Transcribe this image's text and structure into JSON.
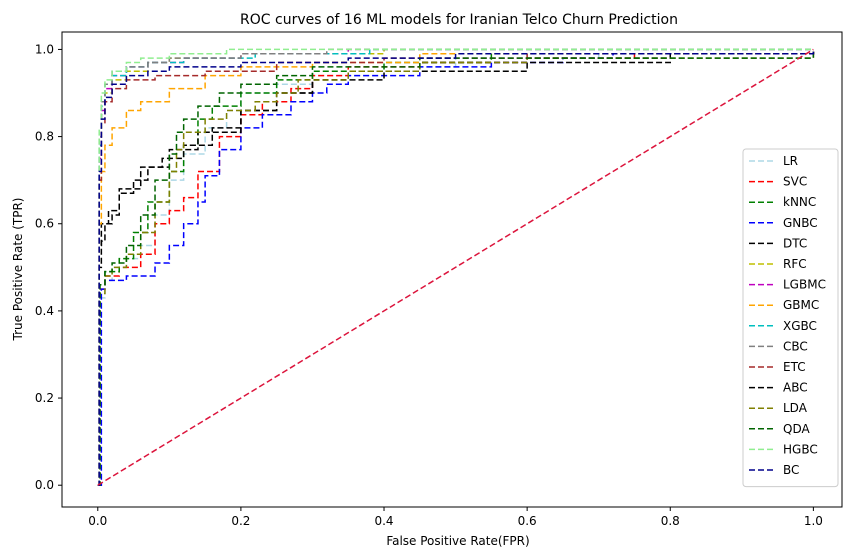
{
  "chart_data": {
    "type": "line",
    "title": "ROC curves of 16 ML models for Iranian Telco Churn Prediction",
    "xlabel": "False Positive Rate(FPR)",
    "ylabel": "True Positive Rate (TPR)",
    "xlim": [
      -0.05,
      1.04
    ],
    "ylim": [
      -0.05,
      1.04
    ],
    "xticks": [
      0.0,
      0.2,
      0.4,
      0.6,
      0.8,
      1.0
    ],
    "yticks": [
      0.0,
      0.2,
      0.4,
      0.6,
      0.8,
      1.0
    ],
    "xtick_labels": [
      "0.0",
      "0.2",
      "0.4",
      "0.6",
      "0.8",
      "1.0"
    ],
    "ytick_labels": [
      "0.0",
      "0.2",
      "0.4",
      "0.6",
      "0.8",
      "1.0"
    ],
    "grid": false,
    "legend_position": "right",
    "series": [
      {
        "name": "LR",
        "color": "#add8e6",
        "points": [
          [
            0,
            0
          ],
          [
            0.003,
            0.43
          ],
          [
            0.01,
            0.47
          ],
          [
            0.02,
            0.5
          ],
          [
            0.04,
            0.52
          ],
          [
            0.06,
            0.55
          ],
          [
            0.08,
            0.62
          ],
          [
            0.1,
            0.7
          ],
          [
            0.12,
            0.76
          ],
          [
            0.15,
            0.82
          ],
          [
            0.18,
            0.86
          ],
          [
            0.2,
            0.9
          ],
          [
            0.25,
            0.92
          ],
          [
            0.3,
            0.94
          ],
          [
            0.4,
            0.96
          ],
          [
            0.5,
            0.98
          ],
          [
            0.7,
            0.99
          ],
          [
            1.0,
            1.0
          ]
        ]
      },
      {
        "name": "SVC",
        "color": "#ff0000",
        "points": [
          [
            0,
            0
          ],
          [
            0.003,
            0.45
          ],
          [
            0.01,
            0.48
          ],
          [
            0.03,
            0.5
          ],
          [
            0.06,
            0.53
          ],
          [
            0.08,
            0.6
          ],
          [
            0.1,
            0.63
          ],
          [
            0.12,
            0.66
          ],
          [
            0.14,
            0.72
          ],
          [
            0.17,
            0.8
          ],
          [
            0.2,
            0.85
          ],
          [
            0.23,
            0.88
          ],
          [
            0.27,
            0.91
          ],
          [
            0.3,
            0.94
          ],
          [
            0.35,
            0.96
          ],
          [
            0.45,
            0.97
          ],
          [
            0.6,
            0.98
          ],
          [
            0.75,
            0.99
          ],
          [
            1.0,
            1.0
          ]
        ]
      },
      {
        "name": "kNNC",
        "color": "#008000",
        "points": [
          [
            0,
            0
          ],
          [
            0.003,
            0.46
          ],
          [
            0.01,
            0.49
          ],
          [
            0.03,
            0.52
          ],
          [
            0.05,
            0.58
          ],
          [
            0.07,
            0.65
          ],
          [
            0.1,
            0.72
          ],
          [
            0.12,
            0.78
          ],
          [
            0.14,
            0.84
          ],
          [
            0.16,
            0.87
          ],
          [
            0.2,
            0.9
          ],
          [
            0.25,
            0.93
          ],
          [
            0.3,
            0.95
          ],
          [
            0.4,
            0.97
          ],
          [
            0.55,
            0.99
          ],
          [
            1.0,
            1.0
          ]
        ]
      },
      {
        "name": "GNBC",
        "color": "#0000ff",
        "points": [
          [
            0,
            0
          ],
          [
            0.005,
            0.45
          ],
          [
            0.01,
            0.47
          ],
          [
            0.04,
            0.48
          ],
          [
            0.08,
            0.51
          ],
          [
            0.1,
            0.55
          ],
          [
            0.12,
            0.6
          ],
          [
            0.14,
            0.65
          ],
          [
            0.15,
            0.71
          ],
          [
            0.17,
            0.77
          ],
          [
            0.2,
            0.82
          ],
          [
            0.23,
            0.85
          ],
          [
            0.27,
            0.88
          ],
          [
            0.3,
            0.9
          ],
          [
            0.32,
            0.92
          ],
          [
            0.35,
            0.94
          ],
          [
            0.45,
            0.96
          ],
          [
            0.55,
            0.97
          ],
          [
            0.65,
            0.98
          ],
          [
            0.69,
            0.98
          ],
          [
            0.72,
            0.99
          ],
          [
            1.0,
            1.0
          ]
        ]
      },
      {
        "name": "DTC",
        "color": "#000000",
        "points": [
          [
            0,
            0
          ],
          [
            0.002,
            0.55
          ],
          [
            0.005,
            0.6
          ],
          [
            0.015,
            0.63
          ],
          [
            0.03,
            0.68
          ],
          [
            0.06,
            0.73
          ],
          [
            0.1,
            0.77
          ],
          [
            0.14,
            0.81
          ],
          [
            0.2,
            0.86
          ],
          [
            0.25,
            0.9
          ],
          [
            0.3,
            0.93
          ],
          [
            0.4,
            0.95
          ],
          [
            0.6,
            0.97
          ],
          [
            0.8,
            0.99
          ],
          [
            1.0,
            1.0
          ]
        ]
      },
      {
        "name": "RFC",
        "color": "#bfbf00",
        "points": [
          [
            0,
            0
          ],
          [
            0.002,
            0.7
          ],
          [
            0.005,
            0.85
          ],
          [
            0.01,
            0.9
          ],
          [
            0.02,
            0.93
          ],
          [
            0.04,
            0.95
          ],
          [
            0.07,
            0.97
          ],
          [
            0.1,
            0.98
          ],
          [
            0.2,
            0.99
          ],
          [
            0.4,
            1.0
          ],
          [
            1.0,
            1.0
          ]
        ]
      },
      {
        "name": "LGBMC",
        "color": "#bf00bf",
        "points": [
          [
            0,
            0
          ],
          [
            0.002,
            0.75
          ],
          [
            0.005,
            0.86
          ],
          [
            0.01,
            0.91
          ],
          [
            0.02,
            0.94
          ],
          [
            0.04,
            0.96
          ],
          [
            0.07,
            0.97
          ],
          [
            0.12,
            0.98
          ],
          [
            0.2,
            0.99
          ],
          [
            0.35,
            1.0
          ],
          [
            1.0,
            1.0
          ]
        ]
      },
      {
        "name": "GBMC",
        "color": "#ffa500",
        "points": [
          [
            0,
            0
          ],
          [
            0.002,
            0.6
          ],
          [
            0.005,
            0.72
          ],
          [
            0.01,
            0.78
          ],
          [
            0.02,
            0.82
          ],
          [
            0.04,
            0.86
          ],
          [
            0.06,
            0.88
          ],
          [
            0.1,
            0.91
          ],
          [
            0.15,
            0.94
          ],
          [
            0.2,
            0.96
          ],
          [
            0.3,
            0.97
          ],
          [
            0.45,
            0.99
          ],
          [
            1.0,
            1.0
          ]
        ]
      },
      {
        "name": "XGBC",
        "color": "#00bfbf",
        "points": [
          [
            0,
            0
          ],
          [
            0.002,
            0.78
          ],
          [
            0.005,
            0.87
          ],
          [
            0.01,
            0.92
          ],
          [
            0.02,
            0.94
          ],
          [
            0.04,
            0.96
          ],
          [
            0.07,
            0.97
          ],
          [
            0.12,
            0.98
          ],
          [
            0.22,
            0.99
          ],
          [
            0.38,
            1.0
          ],
          [
            1.0,
            1.0
          ]
        ]
      },
      {
        "name": "CBC",
        "color": "#808080",
        "points": [
          [
            0,
            0
          ],
          [
            0.002,
            0.8
          ],
          [
            0.005,
            0.88
          ],
          [
            0.01,
            0.92
          ],
          [
            0.02,
            0.95
          ],
          [
            0.04,
            0.96
          ],
          [
            0.07,
            0.97
          ],
          [
            0.1,
            0.98
          ],
          [
            0.2,
            0.99
          ],
          [
            0.32,
            1.0
          ],
          [
            1.0,
            1.0
          ]
        ]
      },
      {
        "name": "ETC",
        "color": "#a52a2a",
        "points": [
          [
            0,
            0
          ],
          [
            0.002,
            0.7
          ],
          [
            0.005,
            0.83
          ],
          [
            0.01,
            0.88
          ],
          [
            0.02,
            0.91
          ],
          [
            0.04,
            0.93
          ],
          [
            0.08,
            0.94
          ],
          [
            0.15,
            0.95
          ],
          [
            0.25,
            0.97
          ],
          [
            0.4,
            0.98
          ],
          [
            0.6,
            0.99
          ],
          [
            1.0,
            1.0
          ]
        ]
      },
      {
        "name": "ABC",
        "color": "#000000",
        "points": [
          [
            0,
            0
          ],
          [
            0.002,
            0.5
          ],
          [
            0.005,
            0.56
          ],
          [
            0.01,
            0.6
          ],
          [
            0.02,
            0.62
          ],
          [
            0.03,
            0.67
          ],
          [
            0.05,
            0.7
          ],
          [
            0.07,
            0.73
          ],
          [
            0.09,
            0.75
          ],
          [
            0.12,
            0.78
          ],
          [
            0.16,
            0.82
          ],
          [
            0.2,
            0.86
          ],
          [
            0.25,
            0.9
          ],
          [
            0.3,
            0.93
          ],
          [
            0.35,
            0.95
          ],
          [
            0.45,
            0.97
          ],
          [
            0.6,
            0.98
          ],
          [
            0.8,
            0.99
          ],
          [
            1.0,
            1.0
          ]
        ]
      },
      {
        "name": "LDA",
        "color": "#808000",
        "points": [
          [
            0,
            0
          ],
          [
            0.003,
            0.44
          ],
          [
            0.01,
            0.48
          ],
          [
            0.02,
            0.5
          ],
          [
            0.04,
            0.53
          ],
          [
            0.06,
            0.58
          ],
          [
            0.08,
            0.65
          ],
          [
            0.1,
            0.72
          ],
          [
            0.11,
            0.77
          ],
          [
            0.12,
            0.81
          ],
          [
            0.15,
            0.84
          ],
          [
            0.18,
            0.86
          ],
          [
            0.22,
            0.88
          ],
          [
            0.25,
            0.9
          ],
          [
            0.28,
            0.93
          ],
          [
            0.35,
            0.95
          ],
          [
            0.45,
            0.97
          ],
          [
            0.6,
            0.98
          ],
          [
            1.0,
            1.0
          ]
        ]
      },
      {
        "name": "QDA",
        "color": "#006400",
        "points": [
          [
            0,
            0
          ],
          [
            0.003,
            0.46
          ],
          [
            0.01,
            0.49
          ],
          [
            0.02,
            0.51
          ],
          [
            0.04,
            0.55
          ],
          [
            0.06,
            0.62
          ],
          [
            0.08,
            0.7
          ],
          [
            0.1,
            0.76
          ],
          [
            0.11,
            0.81
          ],
          [
            0.12,
            0.84
          ],
          [
            0.14,
            0.87
          ],
          [
            0.17,
            0.9
          ],
          [
            0.2,
            0.92
          ],
          [
            0.25,
            0.94
          ],
          [
            0.3,
            0.96
          ],
          [
            0.45,
            0.98
          ],
          [
            1.0,
            1.0
          ]
        ]
      },
      {
        "name": "HGBC",
        "color": "#90ee90",
        "points": [
          [
            0,
            0
          ],
          [
            0.002,
            0.82
          ],
          [
            0.005,
            0.9
          ],
          [
            0.01,
            0.93
          ],
          [
            0.02,
            0.95
          ],
          [
            0.04,
            0.97
          ],
          [
            0.06,
            0.98
          ],
          [
            0.1,
            0.99
          ],
          [
            0.18,
            1.0
          ],
          [
            1.0,
            1.0
          ]
        ]
      },
      {
        "name": "BC",
        "color": "#00008b",
        "points": [
          [
            0,
            0
          ],
          [
            0.002,
            0.72
          ],
          [
            0.005,
            0.84
          ],
          [
            0.01,
            0.89
          ],
          [
            0.02,
            0.92
          ],
          [
            0.04,
            0.94
          ],
          [
            0.07,
            0.95
          ],
          [
            0.1,
            0.96
          ],
          [
            0.2,
            0.97
          ],
          [
            0.35,
            0.98
          ],
          [
            0.5,
            0.99
          ],
          [
            1.0,
            1.0
          ]
        ]
      }
    ],
    "reference_line": {
      "color": "#dc143c",
      "points": [
        [
          0,
          0
        ],
        [
          1,
          1
        ]
      ]
    }
  }
}
